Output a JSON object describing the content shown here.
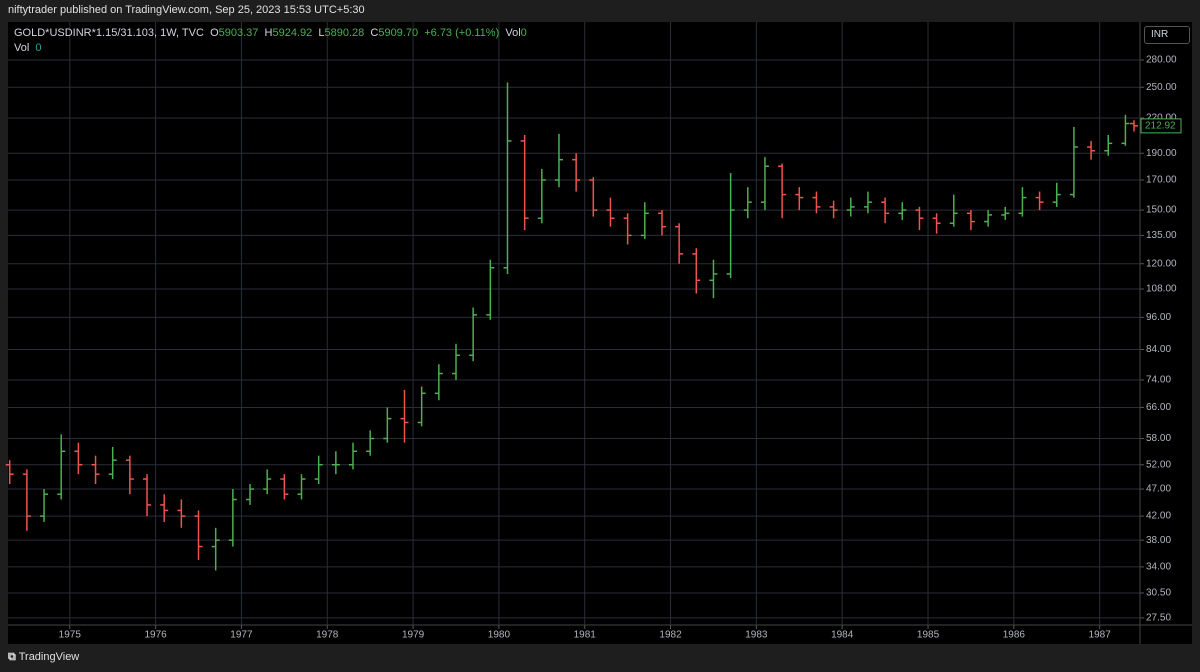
{
  "header": {
    "attribution": "niftytrader published on TradingView.com, Sep 25, 2023 15:53 UTC+5:30"
  },
  "legend": {
    "symbol": "GOLD*USDINR*1.15/31.103, 1W, TVC",
    "open_label": "O",
    "open": "5903.37",
    "high_label": "H",
    "high": "5924.92",
    "low_label": "L",
    "low": "5890.28",
    "close_label": "C",
    "close": "5909.70",
    "change": "+6.73 (+0.11%)",
    "vol_label": "Vol",
    "vol": "0"
  },
  "volume": {
    "label": "Vol",
    "value": "0"
  },
  "currency": "INR",
  "footer": {
    "brand": "TradingView"
  },
  "chart_data": {
    "type": "ohlc",
    "log_scale": true,
    "grid": true,
    "up_color": "#4caf50",
    "down_color": "#ef5350",
    "x": [
      1974.3,
      1974.5,
      1974.7,
      1974.9,
      1975.1,
      1975.3,
      1975.5,
      1975.7,
      1975.9,
      1976.1,
      1976.3,
      1976.5,
      1976.7,
      1976.9,
      1977.1,
      1977.3,
      1977.5,
      1977.7,
      1977.9,
      1978.1,
      1978.3,
      1978.5,
      1978.7,
      1978.9,
      1979.1,
      1979.3,
      1979.5,
      1979.7,
      1979.9,
      1980.1,
      1980.3,
      1980.5,
      1980.7,
      1980.9,
      1981.1,
      1981.3,
      1981.5,
      1981.7,
      1981.9,
      1982.1,
      1982.3,
      1982.5,
      1982.7,
      1982.9,
      1983.1,
      1983.3,
      1983.5,
      1983.7,
      1983.9,
      1984.1,
      1984.3,
      1984.5,
      1984.7,
      1984.9,
      1985.1,
      1985.3,
      1985.5,
      1985.7,
      1985.9,
      1986.1,
      1986.3,
      1986.5,
      1986.7,
      1986.9,
      1987.1,
      1987.3,
      1987.4
    ],
    "open": [
      52,
      50,
      42,
      46,
      55,
      52,
      50,
      53,
      49,
      44,
      43,
      42,
      37,
      38,
      45,
      47,
      49,
      46,
      49,
      52,
      52,
      55,
      58,
      63,
      62,
      70,
      76,
      82,
      97,
      118,
      200,
      145,
      170,
      185,
      170,
      150,
      145,
      135,
      148,
      140,
      125,
      112,
      115,
      150,
      155,
      180,
      160,
      158,
      152,
      150,
      152,
      155,
      148,
      150,
      145,
      142,
      148,
      143,
      147,
      148,
      158,
      155,
      160,
      195,
      192,
      198,
      215
    ],
    "high": [
      53,
      51,
      47,
      59,
      57,
      54,
      56,
      54,
      50,
      46,
      45,
      43,
      40,
      47,
      48,
      51,
      50,
      50,
      54,
      55,
      57,
      60,
      66,
      71,
      72,
      79,
      86,
      100,
      122,
      255,
      205,
      178,
      206,
      190,
      172,
      158,
      148,
      155,
      150,
      142,
      128,
      122,
      175,
      165,
      187,
      182,
      165,
      162,
      156,
      158,
      162,
      158,
      155,
      152,
      148,
      160,
      150,
      150,
      152,
      165,
      162,
      168,
      212,
      200,
      205,
      223,
      218
    ],
    "low": [
      48,
      39.5,
      41,
      45,
      50,
      48,
      49,
      46,
      42,
      41,
      40,
      35,
      33.5,
      37,
      44,
      46,
      45,
      45,
      48,
      50,
      51,
      54,
      57,
      57,
      61,
      68,
      74,
      80,
      95,
      115,
      138,
      142,
      165,
      162,
      146,
      140,
      130,
      133,
      135,
      120,
      106,
      104,
      113,
      145,
      150,
      145,
      150,
      148,
      145,
      146,
      148,
      142,
      144,
      138,
      136,
      140,
      138,
      140,
      144,
      146,
      150,
      152,
      158,
      185,
      188,
      196,
      208
    ],
    "close": [
      50,
      42,
      46,
      55,
      52,
      50,
      53,
      49,
      44,
      43,
      42,
      37,
      38,
      45,
      47,
      49,
      46,
      49,
      52,
      52,
      55,
      58,
      63,
      62,
      70,
      76,
      82,
      97,
      118,
      200,
      145,
      170,
      185,
      170,
      150,
      145,
      135,
      148,
      140,
      125,
      112,
      115,
      150,
      155,
      180,
      160,
      158,
      152,
      150,
      152,
      155,
      148,
      150,
      145,
      142,
      148,
      143,
      147,
      148,
      158,
      155,
      160,
      195,
      192,
      198,
      215,
      212.92
    ],
    "last_label": "212.92",
    "xlim": [
      1974.28,
      1987.47
    ],
    "xticks": [
      1975,
      1976,
      1977,
      1978,
      1979,
      1980,
      1981,
      1982,
      1983,
      1984,
      1985,
      1986,
      1987
    ],
    "ylim": [
      26.7,
      328
    ],
    "yticks": [
      {
        "value": 280,
        "label": "280.00"
      },
      {
        "value": 250,
        "label": "250.00"
      },
      {
        "value": 220,
        "label": "220.00"
      },
      {
        "value": 190,
        "label": "190.00"
      },
      {
        "value": 170,
        "label": "170.00"
      },
      {
        "value": 150,
        "label": "150.00"
      },
      {
        "value": 135,
        "label": "135.00"
      },
      {
        "value": 120,
        "label": "120.00"
      },
      {
        "value": 108,
        "label": "108.00"
      },
      {
        "value": 96,
        "label": "96.00"
      },
      {
        "value": 84,
        "label": "84.00"
      },
      {
        "value": 74,
        "label": "74.00"
      },
      {
        "value": 66,
        "label": "66.00"
      },
      {
        "value": 58,
        "label": "58.00"
      },
      {
        "value": 52,
        "label": "52.00"
      },
      {
        "value": 47,
        "label": "47.00"
      },
      {
        "value": 42,
        "label": "42.00"
      },
      {
        "value": 38,
        "label": "38.00"
      },
      {
        "value": 34,
        "label": "34.00"
      },
      {
        "value": 30.5,
        "label": "30.50"
      },
      {
        "value": 27.5,
        "label": "27.50"
      }
    ]
  }
}
